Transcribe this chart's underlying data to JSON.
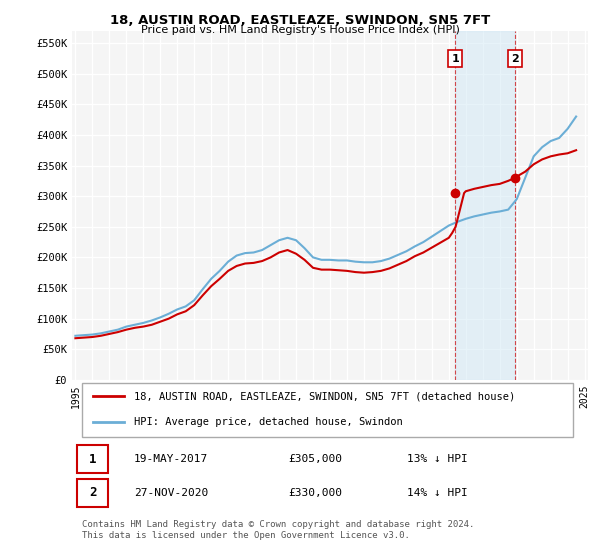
{
  "title": "18, AUSTIN ROAD, EASTLEAZE, SWINDON, SN5 7FT",
  "subtitle": "Price paid vs. HM Land Registry's House Price Index (HPI)",
  "ylabel_ticks": [
    "£0",
    "£50K",
    "£100K",
    "£150K",
    "£200K",
    "£250K",
    "£300K",
    "£350K",
    "£400K",
    "£450K",
    "£500K",
    "£550K"
  ],
  "ylim": [
    0,
    570000
  ],
  "ytick_vals": [
    0,
    50000,
    100000,
    150000,
    200000,
    250000,
    300000,
    350000,
    400000,
    450000,
    500000,
    550000
  ],
  "hpi_color": "#6baed6",
  "price_color": "#cc0000",
  "background_color": "#ffffff",
  "plot_bg_color": "#f5f5f5",
  "grid_color": "#ffffff",
  "transaction1": {
    "date": "19-MAY-2017",
    "price": 305000,
    "label": "1",
    "hpi_diff": "13% ↓ HPI"
  },
  "transaction2": {
    "date": "27-NOV-2020",
    "price": 330000,
    "label": "2",
    "hpi_diff": "14% ↓ HPI"
  },
  "legend_label_red": "18, AUSTIN ROAD, EASTLEAZE, SWINDON, SN5 7FT (detached house)",
  "legend_label_blue": "HPI: Average price, detached house, Swindon",
  "footer": "Contains HM Land Registry data © Crown copyright and database right 2024.\nThis data is licensed under the Open Government Licence v3.0.",
  "hpi_x": [
    1995,
    1995.5,
    1996,
    1996.5,
    1997,
    1997.5,
    1998,
    1998.5,
    1999,
    1999.5,
    2000,
    2000.5,
    2001,
    2001.5,
    2002,
    2002.5,
    2003,
    2003.5,
    2004,
    2004.5,
    2005,
    2005.5,
    2006,
    2006.5,
    2007,
    2007.5,
    2008,
    2008.5,
    2009,
    2009.5,
    2010,
    2010.5,
    2011,
    2011.5,
    2012,
    2012.5,
    2013,
    2013.5,
    2014,
    2014.5,
    2015,
    2015.5,
    2016,
    2016.5,
    2017,
    2017.5,
    2018,
    2018.5,
    2019,
    2019.5,
    2020,
    2020.5,
    2021,
    2021.5,
    2022,
    2022.5,
    2023,
    2023.5,
    2024,
    2024.5
  ],
  "hpi_y": [
    72000,
    73000,
    74000,
    76000,
    79000,
    82000,
    87000,
    90000,
    93000,
    97000,
    102000,
    108000,
    115000,
    120000,
    130000,
    148000,
    165000,
    178000,
    193000,
    203000,
    207000,
    208000,
    212000,
    220000,
    228000,
    232000,
    228000,
    215000,
    200000,
    196000,
    196000,
    195000,
    195000,
    193000,
    192000,
    192000,
    194000,
    198000,
    204000,
    210000,
    218000,
    225000,
    234000,
    243000,
    252000,
    258000,
    263000,
    267000,
    270000,
    273000,
    275000,
    278000,
    295000,
    330000,
    365000,
    380000,
    390000,
    395000,
    410000,
    430000
  ],
  "price_x": [
    1995,
    1995.5,
    1996,
    1996.5,
    1997,
    1997.5,
    1998,
    1998.5,
    1999,
    1999.5,
    2000,
    2000.5,
    2001,
    2001.5,
    2002,
    2002.5,
    2003,
    2003.5,
    2004,
    2004.5,
    2005,
    2005.5,
    2006,
    2006.5,
    2007,
    2007.5,
    2008,
    2008.5,
    2009,
    2009.5,
    2010,
    2010.5,
    2011,
    2011.5,
    2012,
    2012.5,
    2013,
    2013.5,
    2014,
    2014.5,
    2015,
    2015.5,
    2016,
    2016.5,
    2017,
    2017.2,
    2017.4,
    2017.9,
    2018,
    2018.5,
    2019,
    2019.5,
    2020,
    2020.5,
    2020.9,
    2021,
    2021.5,
    2022,
    2022.5,
    2023,
    2023.5,
    2024,
    2024.5
  ],
  "price_y": [
    68000,
    69000,
    70000,
    72000,
    75000,
    78000,
    82000,
    85000,
    87000,
    90000,
    95000,
    100000,
    107000,
    112000,
    122000,
    138000,
    153000,
    165000,
    178000,
    186000,
    190000,
    191000,
    194000,
    200000,
    208000,
    212000,
    206000,
    196000,
    183000,
    180000,
    180000,
    179000,
    178000,
    176000,
    175000,
    176000,
    178000,
    182000,
    188000,
    194000,
    202000,
    208000,
    216000,
    224000,
    232000,
    240000,
    250000,
    305000,
    308000,
    312000,
    315000,
    318000,
    320000,
    325000,
    330000,
    332000,
    340000,
    352000,
    360000,
    365000,
    368000,
    370000,
    375000
  ],
  "marker1_x": 2017.37,
  "marker1_y": 305000,
  "marker2_x": 2020.9,
  "marker2_y": 330000,
  "vline1_x": 2017.37,
  "vline2_x": 2020.9,
  "xlim": [
    1994.8,
    2025.2
  ],
  "xtick_vals": [
    1995,
    1996,
    1997,
    1998,
    1999,
    2000,
    2001,
    2002,
    2003,
    2004,
    2005,
    2006,
    2007,
    2008,
    2009,
    2010,
    2011,
    2012,
    2013,
    2014,
    2015,
    2016,
    2017,
    2018,
    2019,
    2020,
    2021,
    2022,
    2023,
    2024,
    2025
  ]
}
